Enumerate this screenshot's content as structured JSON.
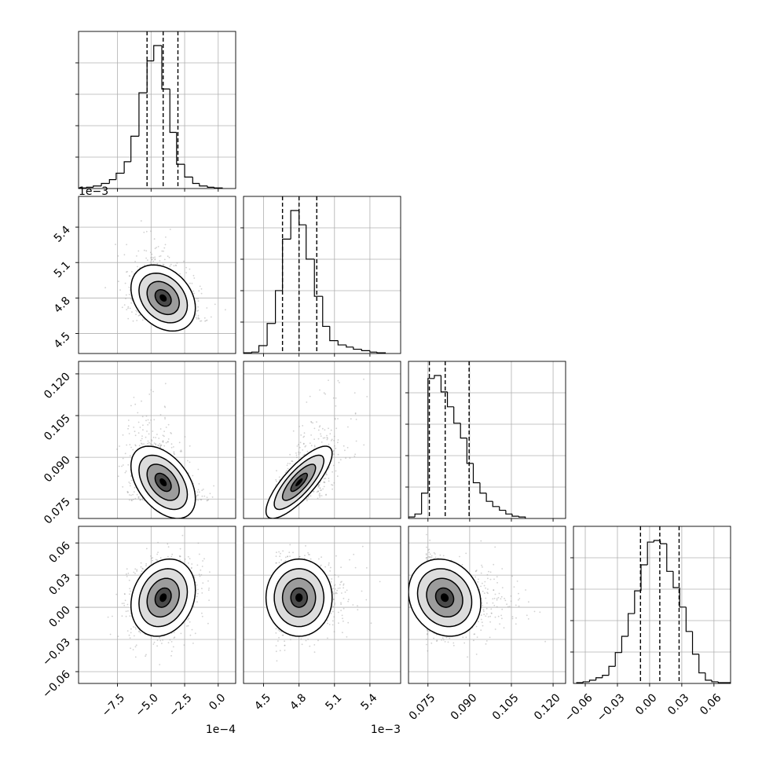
{
  "chart_data": {
    "type": "corner",
    "grid": true,
    "panel_style": {
      "histogram": "step",
      "scatter": "grey points with filled density contours",
      "quantile_lines": "dashed"
    },
    "parameters": [
      {
        "index": 0,
        "offset_label": "1e−4",
        "range": [
          -10.4,
          1.3
        ],
        "ticks": [
          -7.5,
          -5.0,
          -2.5,
          0.0
        ],
        "tick_labels": [
          "−7.5",
          "−5.0",
          "−2.5",
          "0.0"
        ],
        "quantiles": [
          -5.3,
          -4.1,
          -3.0
        ],
        "hist": {
          "edges": [
            -10.4,
            -9.8,
            -9.3,
            -8.7,
            -8.1,
            -7.6,
            -7.0,
            -6.5,
            -5.9,
            -5.3,
            -4.8,
            -4.2,
            -3.6,
            -3.1,
            -2.5,
            -1.9,
            -1.4,
            -0.8,
            -0.3,
            0.3
          ],
          "counts": [
            1,
            2,
            4,
            8,
            14,
            24,
            42,
            82,
            150,
            200,
            224,
            156,
            88,
            38,
            18,
            8,
            4,
            2,
            1
          ]
        },
        "mean": -4.1,
        "std": 1.2,
        "skew": 0.0
      },
      {
        "index": 1,
        "offset_label": "1e−3",
        "range": [
          4.33,
          5.66
        ],
        "ticks": [
          4.5,
          4.8,
          5.1,
          5.4
        ],
        "tick_labels": [
          "4.5",
          "4.8",
          "5.1",
          "5.4"
        ],
        "quantiles": [
          4.66,
          4.8,
          4.95
        ],
        "hist": {
          "edges": [
            4.33,
            4.4,
            4.46,
            4.53,
            4.6,
            4.66,
            4.73,
            4.8,
            4.86,
            4.93,
            5.0,
            5.06,
            5.13,
            5.2,
            5.26,
            5.33,
            5.4,
            5.46,
            5.53
          ],
          "counts": [
            1,
            2,
            11,
            42,
            88,
            160,
            200,
            180,
            132,
            80,
            38,
            18,
            12,
            9,
            6,
            4,
            2,
            1
          ]
        },
        "mean": 4.8,
        "std": 0.14,
        "skew": 0.6
      },
      {
        "index": 2,
        "offset_label": "",
        "range": [
          0.068,
          0.1245
        ],
        "ticks": [
          0.075,
          0.09,
          0.105,
          0.12
        ],
        "tick_labels": [
          "0.075",
          "0.090",
          "0.105",
          "0.120"
        ],
        "quantiles": [
          0.0755,
          0.0812,
          0.0898
        ],
        "hist": {
          "edges": [
            0.068,
            0.0703,
            0.0727,
            0.075,
            0.0773,
            0.0797,
            0.082,
            0.0843,
            0.0867,
            0.089,
            0.0913,
            0.0937,
            0.096,
            0.0983,
            0.1007,
            0.103,
            0.1053,
            0.1077,
            0.11
          ],
          "counts": [
            2,
            6,
            34,
            188,
            192,
            170,
            150,
            128,
            108,
            74,
            48,
            34,
            23,
            16,
            11,
            6,
            3,
            2
          ]
        },
        "mean": 0.081,
        "std": 0.0065,
        "skew": 1.2
      },
      {
        "index": 3,
        "offset_label": "",
        "range": [
          -0.071,
          0.0755
        ],
        "ticks": [
          -0.06,
          -0.03,
          0.0,
          0.03,
          0.06
        ],
        "tick_labels": [
          "−0.06",
          "−0.03",
          "0.00",
          "0.03",
          "0.06"
        ],
        "quantiles": [
          -0.0085,
          0.0095,
          0.0275
        ],
        "hist": {
          "edges": [
            -0.068,
            -0.062,
            -0.056,
            -0.05,
            -0.044,
            -0.038,
            -0.032,
            -0.026,
            -0.02,
            -0.014,
            -0.008,
            -0.002,
            0.004,
            0.01,
            0.016,
            0.022,
            0.028,
            0.034,
            0.04,
            0.046,
            0.052,
            0.058,
            0.064,
            0.07,
            0.076
          ],
          "counts": [
            1,
            2,
            4,
            7,
            10,
            21,
            38,
            58,
            86,
            114,
            146,
            174,
            176,
            172,
            138,
            118,
            94,
            64,
            36,
            13,
            4,
            2,
            1,
            1
          ]
        },
        "mean": 0.009,
        "std": 0.018,
        "skew": 0.0
      }
    ],
    "correlations": [
      [
        1.0,
        -0.3,
        -0.45,
        0.2
      ],
      [
        -0.3,
        1.0,
        0.8,
        0.0
      ],
      [
        -0.45,
        0.8,
        1.0,
        -0.15
      ],
      [
        0.2,
        0.0,
        -0.15,
        1.0
      ]
    ],
    "scatter_points_per_panel": 1200,
    "contour_levels_sigma": [
      0.5,
      1.0,
      1.5,
      2.0
    ],
    "colors": {
      "axes": "#000000",
      "grid": "#b0b0b0",
      "points": "#9a9a9a"
    }
  }
}
